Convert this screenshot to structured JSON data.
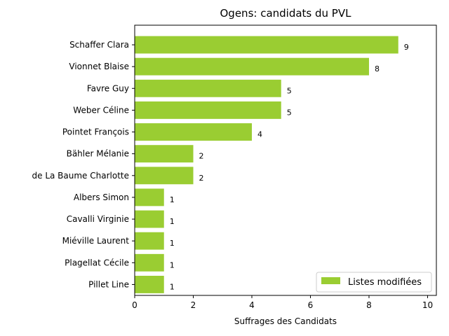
{
  "chart_data": {
    "type": "bar",
    "orientation": "horizontal",
    "title": "Ogens: candidats du PVL",
    "xlabel": "Suffrages des Candidats",
    "ylabel": "",
    "xlim": [
      0,
      10.3
    ],
    "x_ticks": [
      "0",
      "2",
      "4",
      "6",
      "8",
      "10"
    ],
    "categories": [
      "Schaffer Clara",
      "Vionnet Blaise",
      "Favre Guy",
      "Weber Céline",
      "Pointet François",
      "Bähler Mélanie",
      "de La Baume Charlotte",
      "Albers Simon",
      "Cavalli Virginie",
      "Miéville Laurent",
      "Plagellat Cécile",
      "Pillet Line"
    ],
    "series": [
      {
        "name": "Listes modifiées",
        "color": "#9acd32",
        "values": [
          9,
          8,
          5,
          5,
          4,
          2,
          2,
          1,
          1,
          1,
          1,
          1
        ]
      }
    ],
    "data_labels": [
      "9",
      "8",
      "5",
      "5",
      "4",
      "2",
      "2",
      "1",
      "1",
      "1",
      "1",
      "1"
    ],
    "grid": false,
    "legend_position": "lower-right"
  }
}
